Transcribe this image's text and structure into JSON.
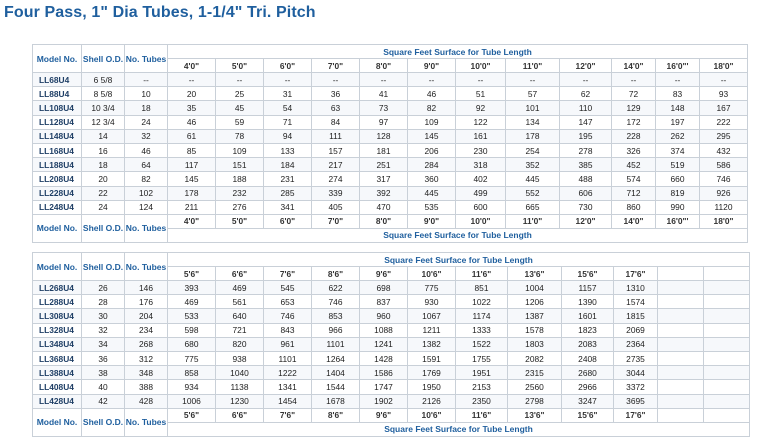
{
  "title": "Four Pass, 1\" Dia Tubes, 1-1/4\" Tri. Pitch",
  "headers": {
    "model": "Model No.",
    "shell": "Shell O.D.",
    "tubes": "No. Tubes",
    "surface": "Square Feet Surface for Tube Length"
  },
  "table1": {
    "lengths": [
      "4'0\"",
      "5'0\"",
      "6'0\"",
      "7'0\"",
      "8'0\"",
      "9'0\"",
      "10'0\"",
      "11'0\"",
      "12'0\"",
      "14'0\"",
      "16'0\"'",
      "18'0\""
    ],
    "rows": [
      {
        "model": "LL68U4",
        "shell": "6 5/8",
        "tubes": "--",
        "values": [
          "--",
          "--",
          "--",
          "--",
          "--",
          "--",
          "--",
          "--",
          "--",
          "--",
          "--",
          "--"
        ]
      },
      {
        "model": "LL88U4",
        "shell": "8 5/8",
        "tubes": "10",
        "values": [
          "20",
          "25",
          "31",
          "36",
          "41",
          "46",
          "51",
          "57",
          "62",
          "72",
          "83",
          "93"
        ]
      },
      {
        "model": "LL108U4",
        "shell": "10 3/4",
        "tubes": "18",
        "values": [
          "35",
          "45",
          "54",
          "63",
          "73",
          "82",
          "92",
          "101",
          "110",
          "129",
          "148",
          "167"
        ]
      },
      {
        "model": "LL128U4",
        "shell": "12 3/4",
        "tubes": "24",
        "values": [
          "46",
          "59",
          "71",
          "84",
          "97",
          "109",
          "122",
          "134",
          "147",
          "172",
          "197",
          "222"
        ]
      },
      {
        "model": "LL148U4",
        "shell": "14",
        "tubes": "32",
        "values": [
          "61",
          "78",
          "94",
          "111",
          "128",
          "145",
          "161",
          "178",
          "195",
          "228",
          "262",
          "295"
        ]
      },
      {
        "model": "LL168U4",
        "shell": "16",
        "tubes": "46",
        "values": [
          "85",
          "109",
          "133",
          "157",
          "181",
          "206",
          "230",
          "254",
          "278",
          "326",
          "374",
          "432"
        ]
      },
      {
        "model": "LL188U4",
        "shell": "18",
        "tubes": "64",
        "values": [
          "117",
          "151",
          "184",
          "217",
          "251",
          "284",
          "318",
          "352",
          "385",
          "452",
          "519",
          "586"
        ]
      },
      {
        "model": "LL208U4",
        "shell": "20",
        "tubes": "82",
        "values": [
          "145",
          "188",
          "231",
          "274",
          "317",
          "360",
          "402",
          "445",
          "488",
          "574",
          "660",
          "746"
        ]
      },
      {
        "model": "LL228U4",
        "shell": "22",
        "tubes": "102",
        "values": [
          "178",
          "232",
          "285",
          "339",
          "392",
          "445",
          "499",
          "552",
          "606",
          "712",
          "819",
          "926"
        ]
      },
      {
        "model": "LL248U4",
        "shell": "24",
        "tubes": "124",
        "values": [
          "211",
          "276",
          "341",
          "405",
          "470",
          "535",
          "600",
          "665",
          "730",
          "860",
          "990",
          "1120"
        ]
      }
    ]
  },
  "table2": {
    "lengths": [
      "5'6\"",
      "6'6\"",
      "7'6\"",
      "8'6\"",
      "9'6\"",
      "10'6\"",
      "11'6\"",
      "13'6\"",
      "15'6\"",
      "17'6\""
    ],
    "rows": [
      {
        "model": "LL268U4",
        "shell": "26",
        "tubes": "146",
        "values": [
          "393",
          "469",
          "545",
          "622",
          "698",
          "775",
          "851",
          "1004",
          "1157",
          "1310"
        ]
      },
      {
        "model": "LL288U4",
        "shell": "28",
        "tubes": "176",
        "values": [
          "469",
          "561",
          "653",
          "746",
          "837",
          "930",
          "1022",
          "1206",
          "1390",
          "1574"
        ]
      },
      {
        "model": "LL308U4",
        "shell": "30",
        "tubes": "204",
        "values": [
          "533",
          "640",
          "746",
          "853",
          "960",
          "1067",
          "1174",
          "1387",
          "1601",
          "1815"
        ]
      },
      {
        "model": "LL328U4",
        "shell": "32",
        "tubes": "234",
        "values": [
          "598",
          "721",
          "843",
          "966",
          "1088",
          "1211",
          "1333",
          "1578",
          "1823",
          "2069"
        ]
      },
      {
        "model": "LL348U4",
        "shell": "34",
        "tubes": "268",
        "values": [
          "680",
          "820",
          "961",
          "1101",
          "1241",
          "1382",
          "1522",
          "1803",
          "2083",
          "2364"
        ]
      },
      {
        "model": "LL368U4",
        "shell": "36",
        "tubes": "312",
        "values": [
          "775",
          "938",
          "1101",
          "1264",
          "1428",
          "1591",
          "1755",
          "2082",
          "2408",
          "2735"
        ]
      },
      {
        "model": "LL388U4",
        "shell": "38",
        "tubes": "348",
        "values": [
          "858",
          "1040",
          "1222",
          "1404",
          "1586",
          "1769",
          "1951",
          "2315",
          "2680",
          "3044"
        ]
      },
      {
        "model": "LL408U4",
        "shell": "40",
        "tubes": "388",
        "values": [
          "934",
          "1138",
          "1341",
          "1544",
          "1747",
          "1950",
          "2153",
          "2560",
          "2966",
          "3372"
        ]
      },
      {
        "model": "LL428U4",
        "shell": "42",
        "tubes": "428",
        "values": [
          "1006",
          "1230",
          "1454",
          "1678",
          "1902",
          "2126",
          "2350",
          "2798",
          "3247",
          "3695"
        ]
      }
    ]
  }
}
